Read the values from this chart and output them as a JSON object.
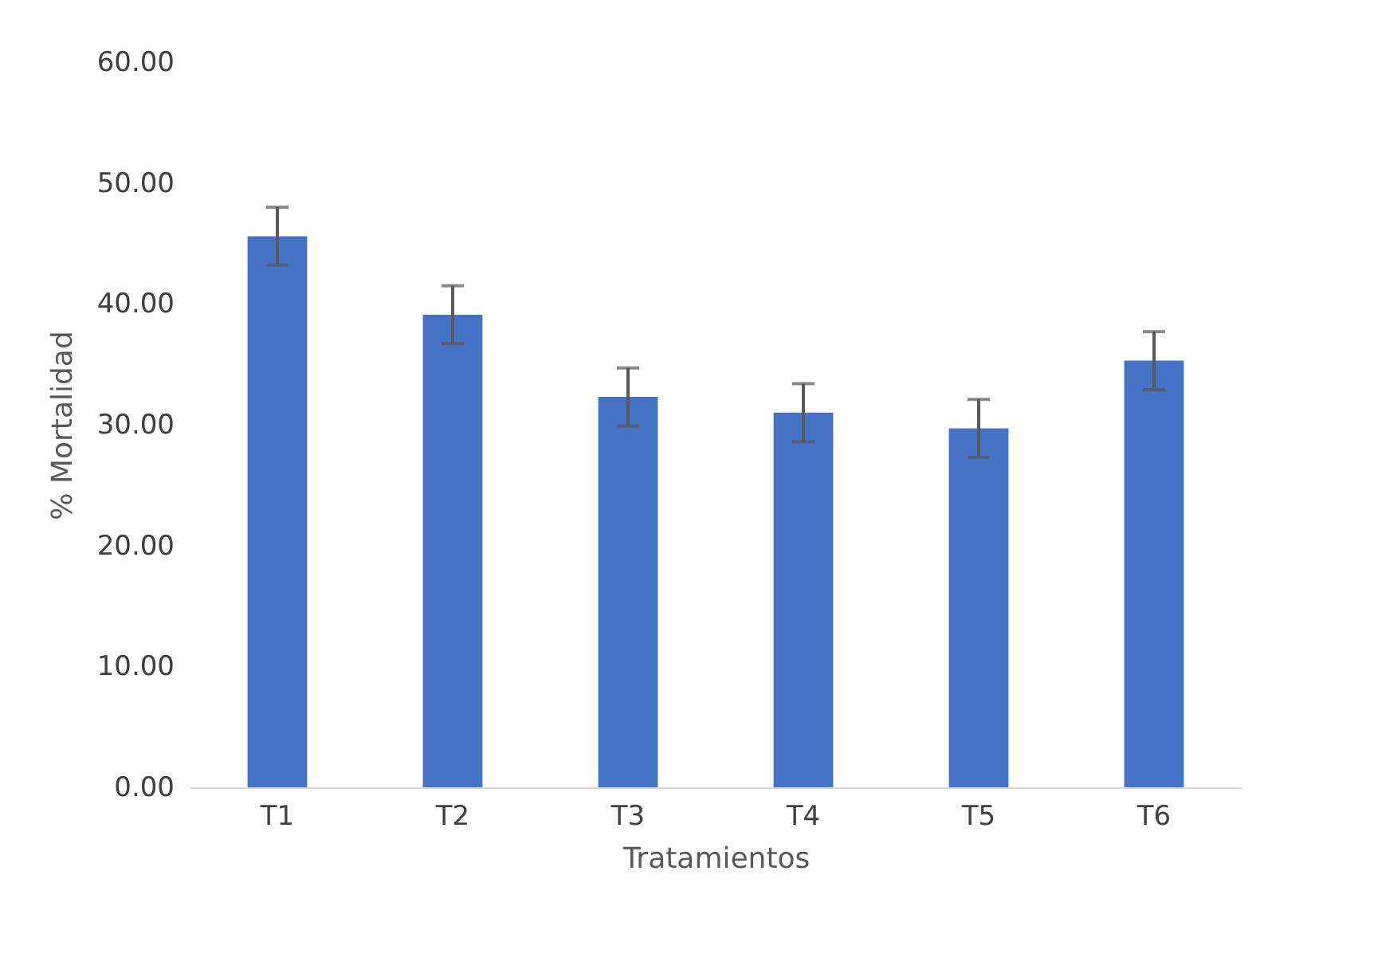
{
  "chart_data": {
    "type": "bar",
    "xlabel": "Tratamientos",
    "ylabel": "% Mortalidad",
    "categories": [
      "T1",
      "T2",
      "T3",
      "T4",
      "T5",
      "T6"
    ],
    "values": [
      45.6,
      39.1,
      32.3,
      31.0,
      29.7,
      35.3
    ],
    "errors": [
      2.4,
      2.4,
      2.4,
      2.4,
      2.4,
      2.4
    ],
    "color": "#4472c4",
    "ylim": [
      0,
      60
    ],
    "yticks": [
      {
        "value": 0,
        "label": "0.00"
      },
      {
        "value": 10,
        "label": "10.00"
      },
      {
        "value": 20,
        "label": "20.00"
      },
      {
        "value": 30,
        "label": "30.00"
      },
      {
        "value": 40,
        "label": "40.00"
      },
      {
        "value": 50,
        "label": "50.00"
      },
      {
        "value": 60,
        "label": "60.00"
      }
    ],
    "grid": false
  }
}
